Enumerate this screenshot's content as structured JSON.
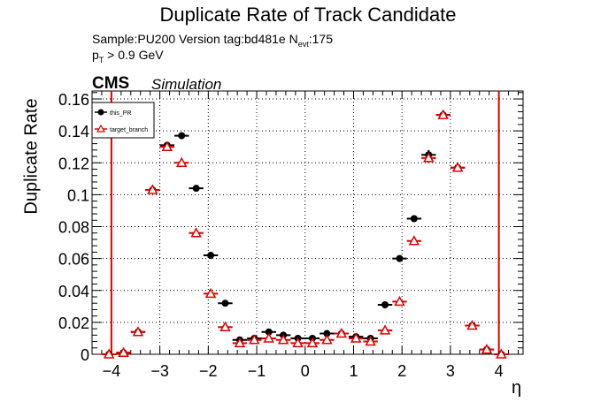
{
  "header": {
    "title": "Duplicate Rate of Track Candidate",
    "sample_label": "Sample:PU200   Version tag:bd481e  N",
    "sample_sub": "evt",
    "sample_suffix": ":175",
    "pt_prefix": "p",
    "pt_sub": "T",
    "pt_suffix": " > 0.9 GeV",
    "cms": "CMS",
    "simulation": "Simulation"
  },
  "chart_data": {
    "type": "scatter",
    "xlabel": "η",
    "ylabel": "Duplicate Rate",
    "xlim": [
      -4.4,
      4.5
    ],
    "ylim": [
      0,
      0.165
    ],
    "xticks": [
      -4,
      -3,
      -2,
      -1,
      0,
      1,
      2,
      3,
      4
    ],
    "xtick_labels": [
      "−4",
      "−3",
      "−2",
      "−1",
      "0",
      "1",
      "2",
      "3",
      "4"
    ],
    "yticks": [
      0,
      0.02,
      0.04,
      0.06,
      0.08,
      0.1,
      0.12,
      0.14,
      0.16
    ],
    "ytick_labels": [
      "0",
      "0.02",
      "0.04",
      "0.06",
      "0.08",
      "0.1",
      "0.12",
      "0.14",
      "0.16"
    ],
    "grid": true,
    "legend_position": "top-left",
    "x_bin_half_width": 0.15,
    "vertical_lines": [
      -4.0,
      4.0
    ],
    "vertical_line_color": "#e00000",
    "series": [
      {
        "name": "this_PR",
        "color": "#000000",
        "marker": "filled-circle",
        "x": [
          -4.05,
          -3.75,
          -3.45,
          -3.15,
          -2.85,
          -2.55,
          -2.25,
          -1.95,
          -1.65,
          -1.35,
          -1.05,
          -0.75,
          -0.45,
          -0.15,
          0.15,
          0.45,
          0.75,
          1.05,
          1.35,
          1.65,
          1.95,
          2.25,
          2.55,
          2.85,
          3.15,
          3.45,
          3.75,
          4.05
        ],
        "y": [
          0.0,
          0.001,
          0.014,
          0.103,
          0.131,
          0.137,
          0.104,
          0.062,
          0.032,
          0.009,
          0.01,
          0.014,
          0.012,
          0.01,
          0.01,
          0.013,
          0.013,
          0.011,
          0.01,
          0.031,
          0.06,
          0.085,
          0.125,
          0.15,
          0.117,
          0.018,
          0.003,
          0.0
        ],
        "yerr": [
          0.0,
          0.0005,
          0.001,
          0.002,
          0.002,
          0.002,
          0.002,
          0.0015,
          0.0012,
          0.0008,
          0.0008,
          0.0008,
          0.0008,
          0.0008,
          0.0008,
          0.0008,
          0.0008,
          0.0008,
          0.0008,
          0.0012,
          0.0015,
          0.002,
          0.003,
          0.002,
          0.002,
          0.001,
          0.0005,
          0.0
        ]
      },
      {
        "name": "target_branch",
        "color": "#e00000",
        "marker": "open-triangle",
        "x": [
          -4.05,
          -3.75,
          -3.45,
          -3.15,
          -2.85,
          -2.55,
          -2.25,
          -1.95,
          -1.65,
          -1.35,
          -1.05,
          -0.75,
          -0.45,
          -0.15,
          0.15,
          0.45,
          0.75,
          1.05,
          1.35,
          1.65,
          1.95,
          2.25,
          2.55,
          2.85,
          3.15,
          3.45,
          3.75,
          4.05
        ],
        "y": [
          0.0,
          0.001,
          0.014,
          0.103,
          0.13,
          0.12,
          0.076,
          0.038,
          0.017,
          0.007,
          0.009,
          0.01,
          0.009,
          0.007,
          0.007,
          0.009,
          0.013,
          0.01,
          0.008,
          0.015,
          0.033,
          0.071,
          0.123,
          0.15,
          0.117,
          0.018,
          0.003,
          0.0
        ],
        "yerr": [
          0.0,
          0.0005,
          0.001,
          0.002,
          0.002,
          0.002,
          0.002,
          0.0015,
          0.0012,
          0.0008,
          0.0008,
          0.0008,
          0.0008,
          0.0008,
          0.0008,
          0.0008,
          0.0008,
          0.0008,
          0.0008,
          0.0012,
          0.0015,
          0.002,
          0.003,
          0.002,
          0.002,
          0.001,
          0.0005,
          0.0
        ]
      }
    ]
  }
}
